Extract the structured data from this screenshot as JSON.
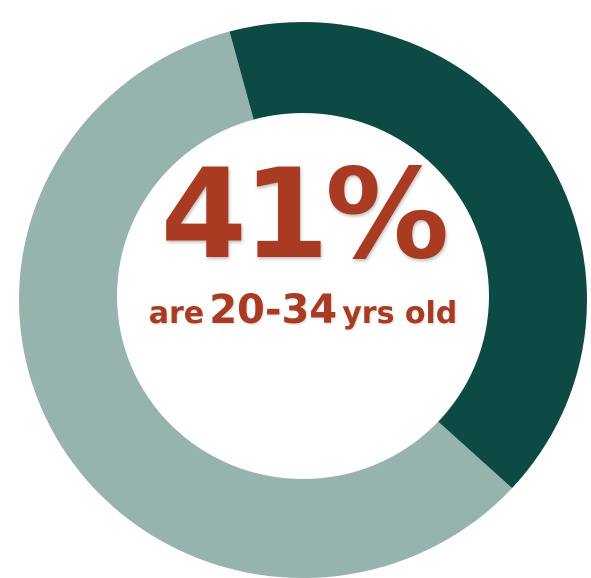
{
  "colors": {
    "highlight_segment": "#0e4a44",
    "rest_segment": "#97b3ad",
    "center_fill": "#ffffff",
    "text": "#a93b22"
  },
  "chart_data": {
    "type": "pie",
    "donut": true,
    "slices": [
      {
        "label": "20-34 yrs old",
        "value": 41
      },
      {
        "label": "",
        "value": 59
      }
    ]
  },
  "center": {
    "value": "41%",
    "prefix": "are",
    "age_range": "20-34",
    "suffix": "yrs old"
  }
}
